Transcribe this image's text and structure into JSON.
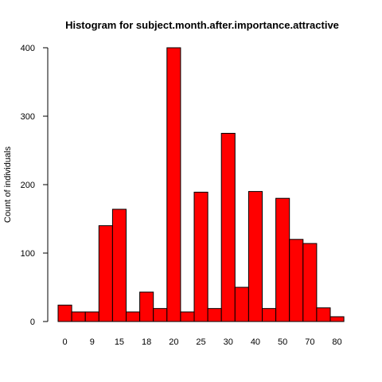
{
  "chart_data": {
    "type": "bar",
    "title": "Histogram for subject.month.after.importance.attractive",
    "xlabel": "",
    "ylabel": "Count of individuals",
    "categories": [
      "0",
      "",
      "9",
      "",
      "15",
      "",
      "18",
      "",
      "20",
      "",
      "25",
      "",
      "30",
      "",
      "40",
      "",
      "50",
      "",
      "70",
      "",
      "80"
    ],
    "values": [
      24,
      14,
      14,
      140,
      164,
      14,
      43,
      19,
      400,
      14,
      189,
      19,
      275,
      50,
      190,
      19,
      180,
      120,
      114,
      20,
      7
    ],
    "ylim": [
      0,
      400
    ],
    "y_ticks": [
      0,
      100,
      200,
      300,
      400
    ],
    "y_tick_labels": [
      "0",
      "100",
      "200",
      "300",
      "400"
    ],
    "grid": false,
    "legend": "none",
    "bar_color": "#ff0000",
    "bar_border_color": "#000000"
  }
}
